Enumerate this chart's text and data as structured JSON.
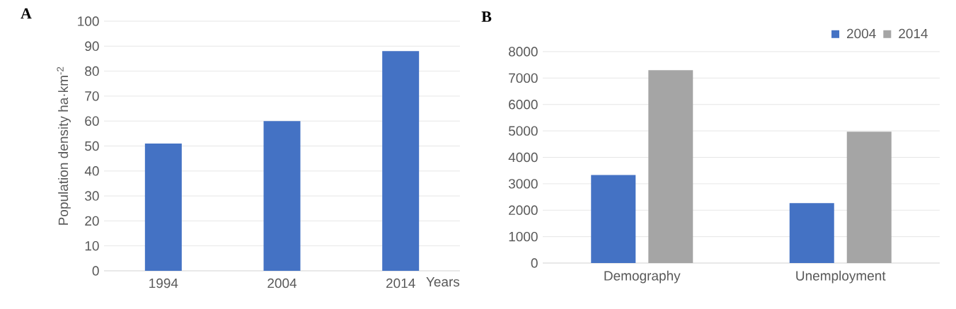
{
  "chart_data": [
    {
      "type": "bar",
      "title": "A",
      "xlabel": "Years",
      "ylabel": "Population density  ha·km$^{-2}$",
      "categories": [
        "1994",
        "2004",
        "2014"
      ],
      "values": [
        51,
        60,
        88
      ],
      "color": "#4472c4",
      "ylim": [
        0,
        100
      ],
      "yticks": [
        0,
        10,
        20,
        30,
        40,
        50,
        60,
        70,
        80,
        90,
        100
      ],
      "grid": "y"
    },
    {
      "type": "bar",
      "title": "B",
      "categories": [
        "Demography",
        "Unemployment"
      ],
      "series": [
        {
          "name": "2004",
          "color": "#4472c4",
          "values": [
            3330,
            2270
          ]
        },
        {
          "name": "2014",
          "color": "#a5a5a5",
          "values": [
            7300,
            4970
          ]
        }
      ],
      "ylim": [
        0,
        8000
      ],
      "yticks": [
        0,
        1000,
        2000,
        3000,
        4000,
        5000,
        6000,
        7000,
        8000
      ],
      "grid": "y",
      "legend": "top right"
    }
  ]
}
